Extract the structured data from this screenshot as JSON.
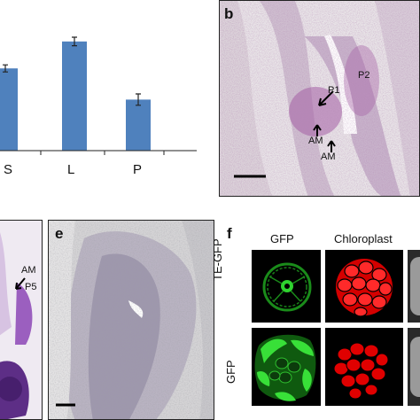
{
  "panel_a": {
    "chart_data": {
      "type": "bar",
      "categories": [
        "S",
        "L",
        "P"
      ],
      "values": [
        0.58,
        0.77,
        0.36
      ],
      "errors": [
        0.025,
        0.03,
        0.04
      ],
      "title": "",
      "xlabel": "",
      "ylabel": "",
      "ylim": [
        0,
        1.0
      ],
      "bar_color": "#4f81bd"
    }
  },
  "panel_b": {
    "letter": "b",
    "labels": {
      "p1": "P1",
      "p2": "P2",
      "am_upper": "AM",
      "am_lower": "AM"
    }
  },
  "panel_d": {
    "labels": {
      "am": "AM",
      "p5": "P5"
    }
  },
  "panel_e": {
    "letter": "e"
  },
  "panel_f": {
    "letter": "f",
    "columns": {
      "gfp": "GFP",
      "chloroplast": "Chloroplast"
    },
    "rows": {
      "te_gfp": "TE-GFP",
      "gfp": "GFP"
    },
    "colors": {
      "gfp": "#22c322",
      "chloroplast": "#ff1a1a"
    }
  }
}
